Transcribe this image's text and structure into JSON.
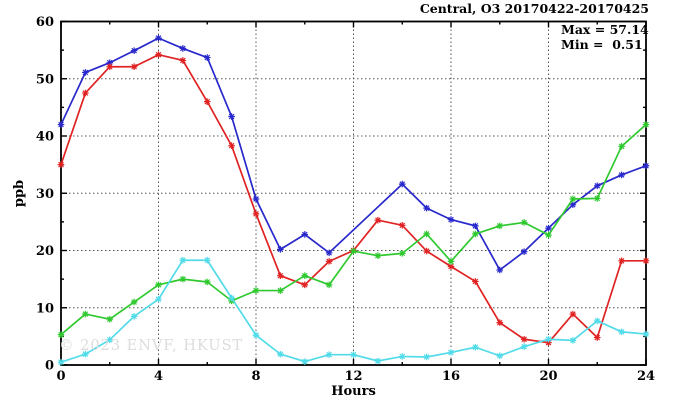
{
  "chart_data": {
    "type": "line",
    "title": "Central, O3 20170422-20170425",
    "xlabel": "Hours",
    "ylabel": "ppb",
    "watermark": "© 2023 ENVF, HKUST",
    "stats": {
      "max_label": "Max = 57.14",
      "min_label": "Min =  0.51"
    },
    "xlim": [
      0,
      24
    ],
    "ylim": [
      0,
      60
    ],
    "xticks_major": [
      0,
      4,
      8,
      12,
      16,
      20,
      24
    ],
    "xticks_minor": [
      2,
      6,
      10,
      14,
      18,
      22
    ],
    "yticks_major": [
      0,
      10,
      20,
      30,
      40,
      50,
      60
    ],
    "yticks_minor": [
      5,
      15,
      25,
      35,
      45,
      55
    ],
    "grid_x": [
      4,
      8,
      12,
      16,
      20
    ],
    "grid_y": [
      10,
      20,
      30,
      40,
      50
    ],
    "grid": true,
    "legend_position": "top-right-stats-text-only",
    "x": [
      0,
      1,
      2,
      3,
      4,
      5,
      6,
      7,
      8,
      9,
      10,
      11,
      12,
      13,
      14,
      15,
      16,
      17,
      18,
      19,
      20,
      21,
      22,
      23,
      24
    ],
    "series": [
      {
        "name": "series-blue",
        "color": "#2828cd",
        "values": [
          42.0,
          51.1,
          52.8,
          54.9,
          57.1,
          55.3,
          53.7,
          43.4,
          29.0,
          20.2,
          22.8,
          19.6,
          null,
          null,
          31.6,
          27.4,
          25.4,
          24.3,
          16.6,
          19.8,
          23.9,
          28.0,
          31.3,
          33.2,
          34.8
        ]
      },
      {
        "name": "series-red",
        "color": "#e02222",
        "values": [
          35.0,
          47.5,
          52.1,
          52.1,
          54.2,
          53.2,
          46.0,
          38.3,
          26.4,
          15.6,
          14.0,
          18.1,
          20.0,
          25.3,
          24.4,
          19.9,
          17.2,
          14.6,
          7.4,
          4.5,
          3.9,
          8.9,
          4.8,
          18.2,
          18.2
        ]
      },
      {
        "name": "series-green",
        "color": "#2fc92f",
        "values": [
          5.3,
          8.9,
          8.0,
          11.0,
          14.0,
          15.0,
          14.5,
          11.2,
          13.0,
          13.0,
          15.6,
          14.0,
          19.9,
          19.1,
          19.5,
          22.9,
          18.1,
          22.9,
          24.3,
          24.9,
          22.7,
          29.0,
          29.1,
          38.2,
          42.0
        ]
      },
      {
        "name": "series-cyan",
        "color": "#52dbe8",
        "values": [
          0.5,
          1.9,
          4.4,
          8.5,
          11.5,
          18.3,
          18.3,
          11.7,
          5.2,
          1.9,
          0.6,
          1.8,
          1.8,
          0.7,
          1.5,
          1.4,
          2.2,
          3.1,
          1.6,
          3.2,
          4.5,
          4.3,
          7.7,
          5.8,
          5.4
        ]
      }
    ],
    "colors": {
      "frame": "#000000",
      "grid": "#555555",
      "tick_label": "#000000"
    }
  }
}
